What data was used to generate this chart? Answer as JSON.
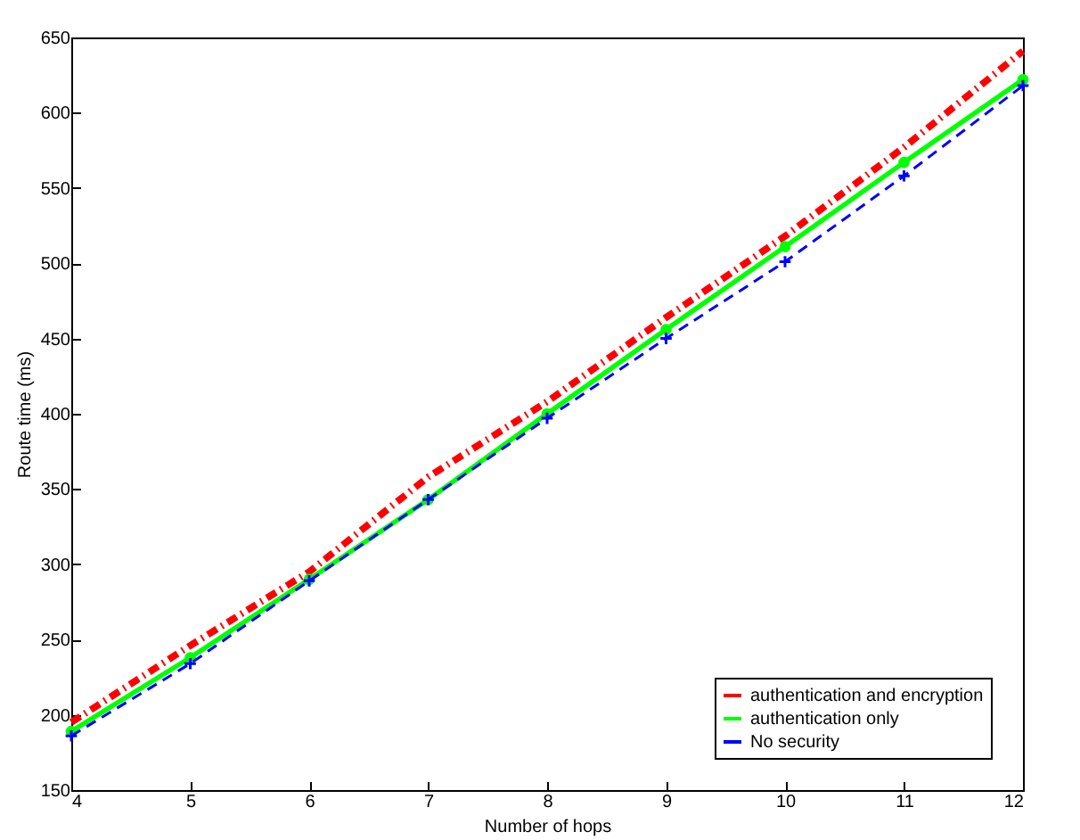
{
  "chart_data": {
    "type": "line",
    "xlabel": "Number of hops",
    "ylabel": "Route time (ms)",
    "x": [
      4,
      5,
      6,
      7,
      8,
      9,
      10,
      11,
      12
    ],
    "xlim": [
      4,
      12
    ],
    "xticks": [
      4,
      5,
      6,
      7,
      8,
      9,
      10,
      11,
      12
    ],
    "ylim": [
      150,
      650
    ],
    "yticks": [
      150,
      200,
      250,
      300,
      350,
      400,
      450,
      500,
      550,
      600,
      650
    ],
    "grid": false,
    "legend": "bottom right",
    "series": [
      {
        "name": "authentication and encryption",
        "color": "#ff0000",
        "marker": "none",
        "line_style": "dashdot",
        "values": [
          195,
          246,
          295,
          358,
          408,
          464,
          518,
          577,
          641
        ]
      },
      {
        "name": "authentication only",
        "color": "#00ff00",
        "marker": "circle",
        "line_style": "solid",
        "values": [
          189,
          238,
          290,
          343,
          400,
          456,
          511,
          567,
          622
        ]
      },
      {
        "name": "No security",
        "color": "#0000ff",
        "marker": "cross",
        "line_style": "dashed",
        "values": [
          186,
          234,
          289,
          343,
          397,
          450,
          501,
          558,
          618
        ]
      }
    ]
  }
}
